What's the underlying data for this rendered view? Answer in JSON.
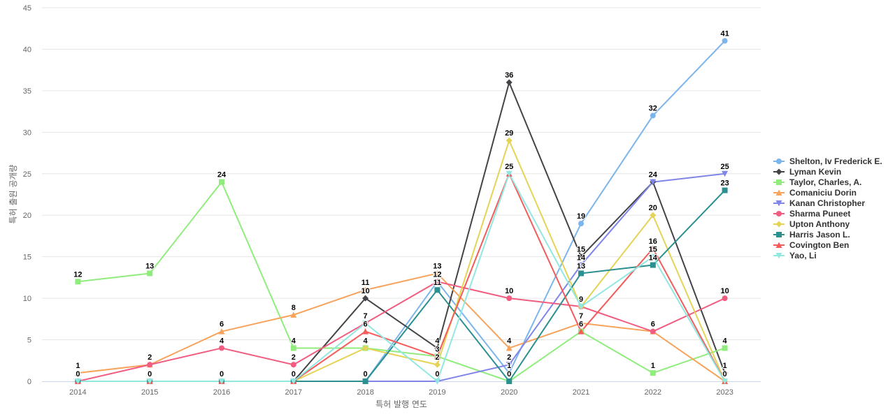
{
  "chart_data": {
    "type": "line",
    "title": "",
    "xlabel": "특허 발행 연도",
    "ylabel": "특허 출원 공개량",
    "categories": [
      "2014",
      "2015",
      "2016",
      "2017",
      "2018",
      "2019",
      "2020",
      "2021",
      "2022",
      "2023"
    ],
    "ylim": [
      0,
      45
    ],
    "yticks": [
      0,
      5,
      10,
      15,
      20,
      25,
      30,
      35,
      40,
      45
    ],
    "grid": true,
    "legend_position": "right",
    "series": [
      {
        "name": "Shelton, Iv Frederick E.",
        "color": "#7cb5ec",
        "marker": "circle",
        "values": [
          0,
          0,
          0,
          0,
          0,
          12,
          1,
          19,
          32,
          41
        ]
      },
      {
        "name": "Lyman Kevin",
        "color": "#434348",
        "marker": "diamond",
        "values": [
          0,
          0,
          0,
          0,
          10,
          4,
          36,
          15,
          24,
          1
        ]
      },
      {
        "name": "Taylor, Charles, A.",
        "color": "#90ed7d",
        "marker": "square",
        "values": [
          12,
          13,
          24,
          4,
          4,
          3,
          0,
          6,
          1,
          4
        ]
      },
      {
        "name": "Comaniciu Dorin",
        "color": "#f7a35c",
        "marker": "triangle",
        "values": [
          1,
          2,
          6,
          8,
          11,
          13,
          4,
          7,
          6,
          0
        ]
      },
      {
        "name": "Kanan Christopher",
        "color": "#8085e9",
        "marker": "triangle-down",
        "values": [
          0,
          0,
          0,
          0,
          0,
          0,
          2,
          14,
          24,
          25
        ]
      },
      {
        "name": "Sharma Puneet",
        "color": "#f15c80",
        "marker": "circle",
        "values": [
          0,
          2,
          4,
          2,
          7,
          12,
          10,
          9,
          6,
          10
        ]
      },
      {
        "name": "Upton Anthony",
        "color": "#e4d354",
        "marker": "diamond",
        "values": [
          0,
          0,
          0,
          0,
          4,
          2,
          29,
          9,
          20,
          0
        ]
      },
      {
        "name": "Harris Jason L.",
        "color": "#2b908f",
        "marker": "square",
        "values": [
          0,
          0,
          0,
          0,
          0,
          11,
          0,
          13,
          14,
          23
        ]
      },
      {
        "name": "Covington Ben",
        "color": "#f45b5b",
        "marker": "triangle",
        "values": [
          0,
          0,
          0,
          0,
          6,
          3,
          25,
          6,
          16,
          0
        ]
      },
      {
        "name": "Yao, Li",
        "color": "#91e8e1",
        "marker": "triangle-down",
        "values": [
          0,
          0,
          0,
          0,
          7,
          0,
          25,
          9,
          15,
          0
        ]
      }
    ]
  }
}
